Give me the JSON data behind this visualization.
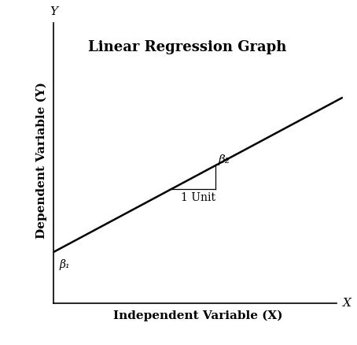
{
  "title": "Linear Regression Graph",
  "title_fontsize": 13,
  "title_fontweight": "bold",
  "title_color": "#000000",
  "xlabel": "Independent Variable (X)",
  "ylabel": "Dependent Variable (Y)",
  "axis_label_fontsize": 11,
  "axis_label_fontweight": "bold",
  "axis_label_color": "#000000",
  "xlim": [
    0,
    10
  ],
  "ylim": [
    0,
    10
  ],
  "line_x_start": 0.0,
  "line_x_end": 10.0,
  "line_y_start": 1.8,
  "line_y_end": 7.2,
  "line_color": "#000000",
  "line_width": 1.8,
  "beta1_label": "β₁",
  "beta1_x": 0.2,
  "beta1_y": 1.55,
  "beta2_label": "β₂",
  "beta2_x": 5.7,
  "beta2_y": 4.82,
  "unit_label": "1 Unit",
  "unit_x": 5.0,
  "unit_y": 3.88,
  "tri_x1": 4.0,
  "tri_y1": 4.0,
  "tri_x2": 5.6,
  "tri_y2": 4.0,
  "tri_x3": 5.6,
  "tri_y3": 4.86,
  "triangle_color": "#000000",
  "triangle_lw": 0.9,
  "background_color": "#ffffff",
  "axis_lw": 1.2
}
